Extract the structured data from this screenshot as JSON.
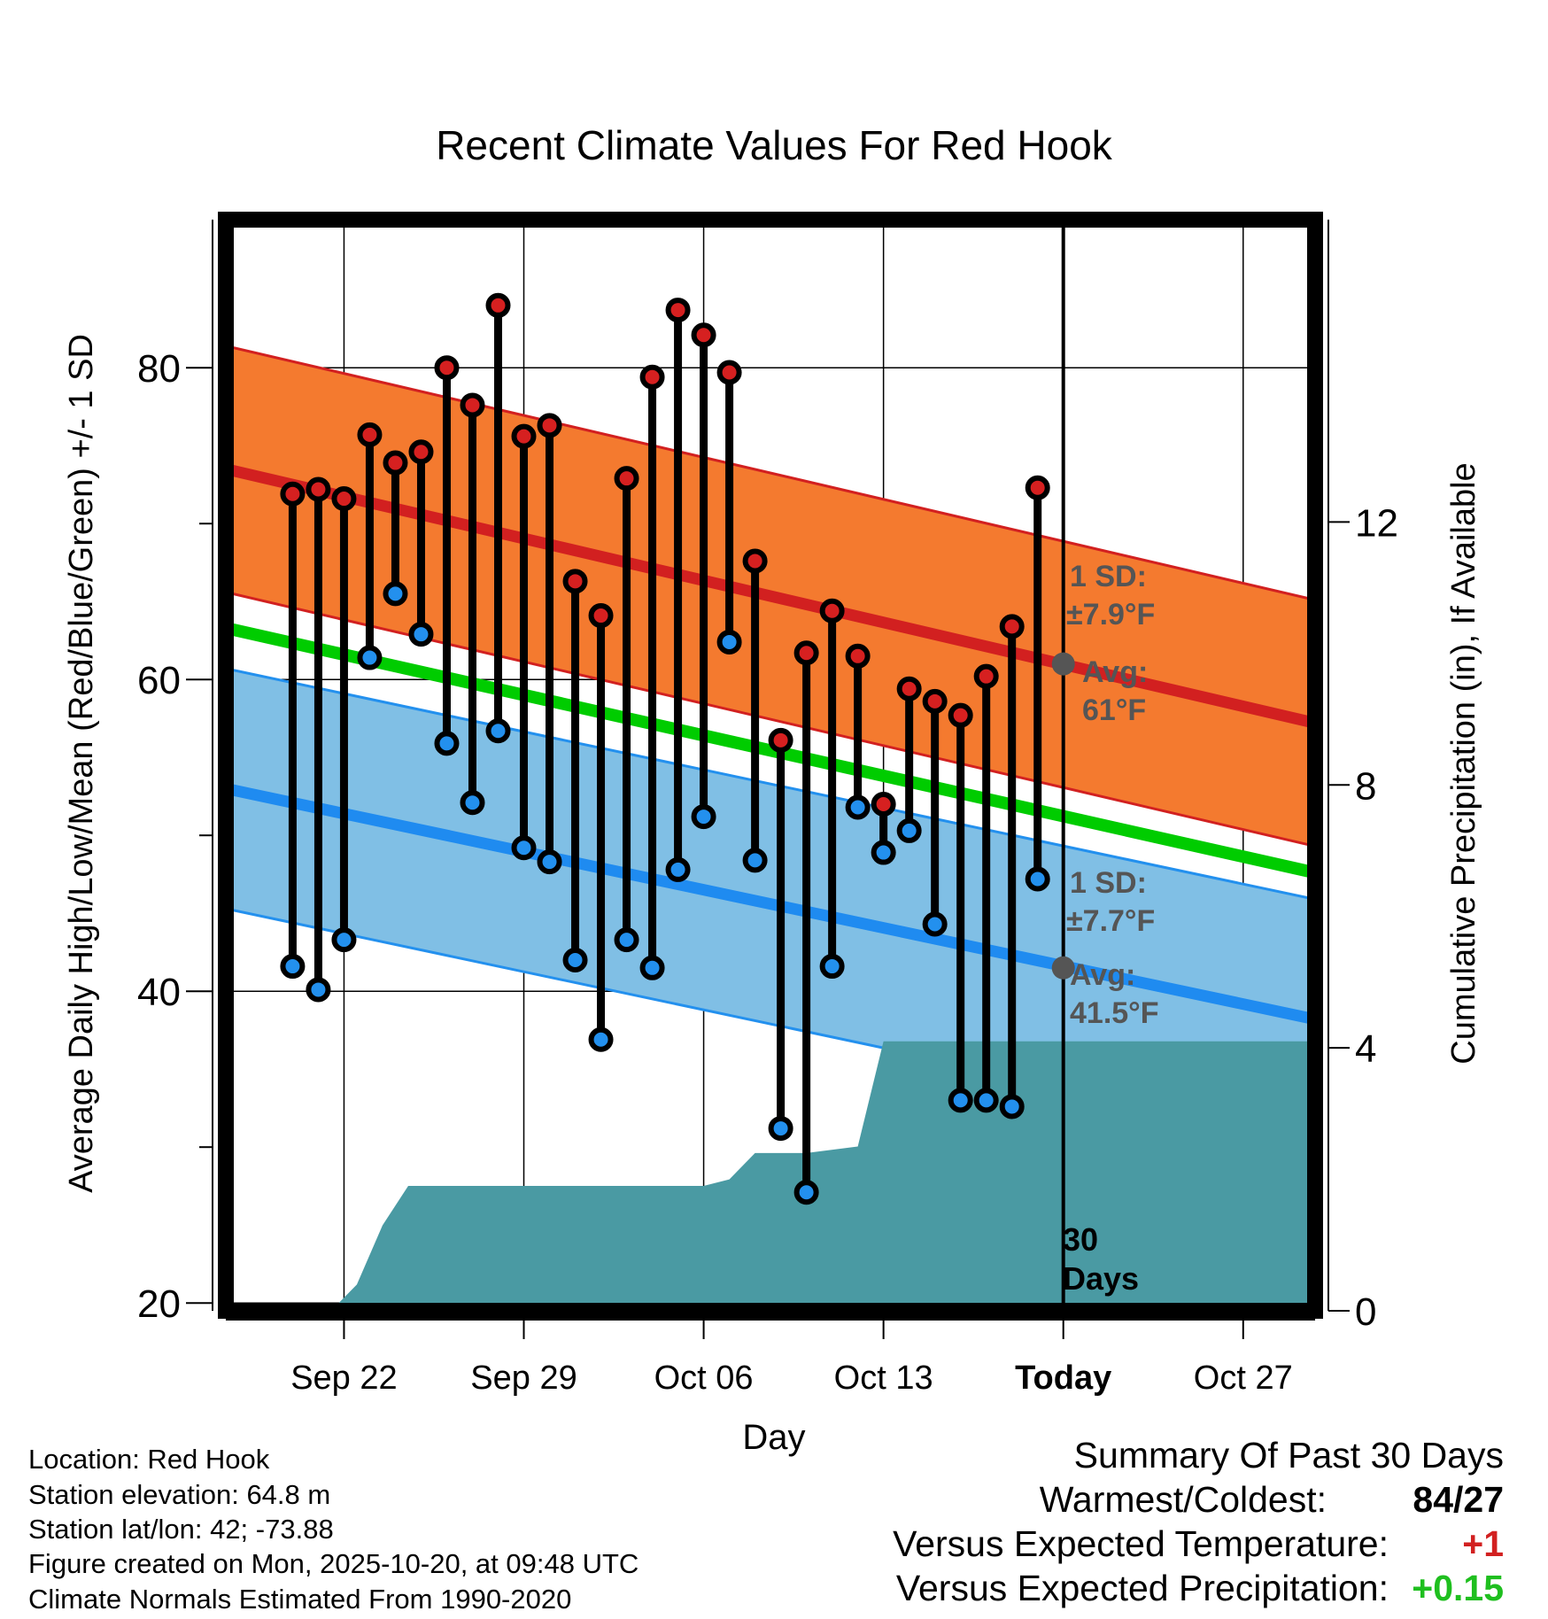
{
  "chart_data": {
    "type": "line",
    "title": "Recent Climate Values For Red Hook",
    "xlabel": "Day",
    "ylabel": "Average Daily High/Low/Mean (Red/Blue/Green) +/- 1 SD",
    "ylabel_right": "Cumulative Precipitation (in), If Available",
    "ylim": [
      19.5,
      89.5
    ],
    "ylim_right": [
      0,
      16.6
    ],
    "yticks": [
      20,
      40,
      60,
      80
    ],
    "yticks_right": [
      0,
      4,
      8,
      12
    ],
    "x_range_days": [
      -32.6,
      9.8
    ],
    "x_ticks": [
      {
        "day": -28,
        "label": "Sep 22"
      },
      {
        "day": -21,
        "label": "Sep 29"
      },
      {
        "day": -14,
        "label": "Oct 06"
      },
      {
        "day": -7,
        "label": "Oct 13"
      },
      {
        "day": 0,
        "label": "Today"
      },
      {
        "day": 7,
        "label": "Oct 27"
      }
    ],
    "days": [
      -30,
      -29,
      -28,
      -27,
      -26,
      -25,
      -24,
      -23,
      -22,
      -21,
      -20,
      -19,
      -18,
      -17,
      -16,
      -15,
      -14,
      -13,
      -12,
      -11,
      -10,
      -9,
      -8,
      -7,
      -6,
      -5,
      -4,
      -3,
      -2,
      -1
    ],
    "highs": [
      71.9,
      72.2,
      71.6,
      75.7,
      73.9,
      74.6,
      80.0,
      77.6,
      84.0,
      75.6,
      76.3,
      66.3,
      64.1,
      72.9,
      79.4,
      83.7,
      82.1,
      79.7,
      67.6,
      56.1,
      61.7,
      64.4,
      61.5,
      52.0,
      59.4,
      58.6,
      57.7,
      60.2,
      63.4,
      72.3
    ],
    "lows": [
      41.6,
      40.1,
      43.3,
      61.4,
      65.5,
      62.9,
      55.9,
      52.1,
      56.7,
      49.2,
      48.3,
      42.0,
      36.9,
      43.3,
      41.5,
      47.8,
      51.2,
      62.4,
      48.4,
      31.2,
      27.1,
      41.6,
      51.8,
      48.9,
      50.3,
      44.3,
      33.0,
      33.0,
      32.6,
      47.2
    ],
    "normal_high": {
      "start": 73.5,
      "end": 57.2,
      "sd": 7.9
    },
    "normal_low": {
      "start": 53.0,
      "end": 38.2,
      "sd": 7.7
    },
    "normal_mean": {
      "start": 63.3,
      "end": 47.6
    },
    "precip_cumulative": {
      "days": [
        -32.6,
        -28.5,
        -27.5,
        -26.5,
        -25.5,
        -24,
        -21,
        -14.9,
        -14,
        -13,
        -12,
        -10,
        -8,
        -7,
        -6,
        -3,
        0,
        5,
        9.8
      ],
      "values": [
        0,
        0,
        0.4,
        1.3,
        1.9,
        1.9,
        1.9,
        1.9,
        1.9,
        2.0,
        2.4,
        2.4,
        2.5,
        4.1,
        4.1,
        4.1,
        4.1,
        4.1,
        4.1
      ]
    },
    "annotations": {
      "high_sd_title": "1 SD:",
      "high_sd_value": "±7.9°F",
      "high_avg_title": "Avg:",
      "high_avg_value": "61°F",
      "low_sd_title": "1 SD:",
      "low_sd_value": "±7.7°F",
      "low_avg_title": "Avg:",
      "low_avg_value": "41.5°F",
      "window_count": "30",
      "window_unit": "Days"
    },
    "today_high_normal": 61.0,
    "today_low_normal": 41.5
  },
  "colors": {
    "record_high": "#d62020",
    "record_low": "#2390ee",
    "high_band": "#f47a2f",
    "high_line": "#d22020",
    "low_band": "#80bfe5",
    "low_line": "#1f8bf0",
    "mean_line": "#00cc00",
    "precip": "#4a9aa3",
    "avg_marker": "#555555",
    "positive_temp": "#d22020",
    "positive_precip": "#1fbf1f"
  },
  "info": {
    "location": "Location: Red Hook",
    "elevation": "Station elevation: 64.8 m",
    "latlon": "Station lat/lon: 42; -73.88",
    "created": "Figure created on Mon, 2025-10-20, at 09:48 UTC",
    "normals": "Climate Normals Estimated From 1990-2020"
  },
  "summary": {
    "title": "Summary Of Past 30 Days",
    "warm_cold_label": "Warmest/Coldest:",
    "warm_cold_value": "84/27",
    "temp_label": "Versus Expected Temperature:",
    "temp_value": "+1",
    "precip_label": "Versus Expected Precipitation:",
    "precip_value": "+0.15"
  }
}
